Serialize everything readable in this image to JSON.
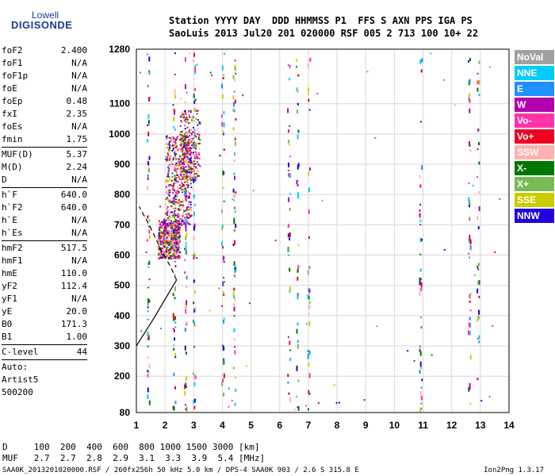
{
  "logo": {
    "line1": "Lowell",
    "line2": "DIGISONDE"
  },
  "header": {
    "line1": "Station YYYY DAY  DDD HHMMSS P1  FFS S AXN PPS IGA PS",
    "line2": "SaoLuis 2013 Jul20 201 020000 RSF 005 2 713 100 10+ 22"
  },
  "params_group1": [
    {
      "label": "foF2",
      "value": "2.400"
    },
    {
      "label": "foF1",
      "value": "N/A"
    },
    {
      "label": "foF1p",
      "value": "N/A"
    },
    {
      "label": "foE",
      "value": "N/A"
    },
    {
      "label": "foEp",
      "value": "0.48"
    },
    {
      "label": "fxI",
      "value": "2.35"
    },
    {
      "label": "foEs",
      "value": "N/A"
    },
    {
      "label": "fmin",
      "value": "1.75"
    }
  ],
  "params_group2": [
    {
      "label": "MUF(D)",
      "value": "5.37"
    },
    {
      "label": "M(D)",
      "value": "2.24"
    },
    {
      "label": "D",
      "value": "N/A"
    }
  ],
  "params_group3": [
    {
      "label": "h`F",
      "value": "640.0"
    },
    {
      "label": "h`F2",
      "value": "640.0"
    },
    {
      "label": "h`E",
      "value": "N/A"
    },
    {
      "label": "h`Es",
      "value": "N/A"
    }
  ],
  "params_group4": [
    {
      "label": "hmF2",
      "value": "517.5"
    },
    {
      "label": "hmF1",
      "value": "N/A"
    },
    {
      "label": "hmE",
      "value": "110.0"
    },
    {
      "label": "yF2",
      "value": "112.4"
    },
    {
      "label": "yF1",
      "value": "N/A"
    },
    {
      "label": "yE",
      "value": "20.0"
    },
    {
      "label": "B0",
      "value": "171.3"
    },
    {
      "label": "B1",
      "value": "1.00"
    }
  ],
  "params_group5": [
    {
      "label": "C-level",
      "value": "44"
    }
  ],
  "auto": {
    "line1": "Auto:",
    "line2": "Artist5",
    "line3": "500200"
  },
  "legend": [
    {
      "label": "NoVal",
      "color": "#a0a0a0"
    },
    {
      "label": "NNE",
      "color": "#00ccff"
    },
    {
      "label": "E",
      "color": "#1e90ff"
    },
    {
      "label": "W",
      "color": "#b000b0"
    },
    {
      "label": "Vo-",
      "color": "#ff33aa"
    },
    {
      "label": "Vo+",
      "color": "#ee0022"
    },
    {
      "label": "SSW",
      "color": "#ffb0b0"
    },
    {
      "label": "X-",
      "color": "#007700"
    },
    {
      "label": "X+",
      "color": "#77bb55"
    },
    {
      "label": "SSE",
      "color": "#cccc00"
    },
    {
      "label": "NNW",
      "color": "#2200dd"
    }
  ],
  "dmuf": {
    "line1": "D     100  200  400  600  800 1000 1500 3000 [km]",
    "line2": "MUF   2.7  2.7  2.8  2.9  3.1  3.3  3.9  5.4 [MHz]"
  },
  "footer": "SAA0K_2013201020000.RSF / 260fx256h 50 kHz 5.0 km / DPS-4 SAA0K 903 / 2.6 S 315.8 E",
  "version": "Ion2Png 1.3.17",
  "chart_data": {
    "type": "scatter",
    "xlabel": "",
    "ylabel": "",
    "xlim": [
      1,
      14
    ],
    "ylim": [
      80,
      1280
    ],
    "xticks": [
      1,
      2,
      3,
      4,
      5,
      6,
      7,
      8,
      9,
      10,
      11,
      12,
      13,
      14
    ],
    "yticks": [
      80,
      200,
      300,
      400,
      500,
      600,
      700,
      800,
      900,
      1000,
      1100,
      1280
    ],
    "grid": true,
    "trace_clusters": [
      {
        "freq_min": 1.75,
        "freq_max": 2.5,
        "height_min": 590,
        "height_max": 720,
        "density": "high"
      },
      {
        "freq_min": 2.0,
        "freq_max": 2.9,
        "height_min": 700,
        "height_max": 1000,
        "density": "high"
      },
      {
        "freq_min": 2.5,
        "freq_max": 3.2,
        "height_min": 850,
        "height_max": 1080,
        "density": "medium"
      }
    ],
    "interference_lines_mhz": [
      1.4,
      2.3,
      2.7,
      3.0,
      4.0,
      4.4,
      6.3,
      6.6,
      7.0,
      10.9,
      12.6,
      12.9
    ],
    "profile_curve": [
      [
        1.0,
        300
      ],
      [
        1.6,
        390
      ],
      [
        2.1,
        470
      ],
      [
        2.4,
        517.5
      ]
    ],
    "profile_extension_dashed": [
      [
        2.4,
        517.5
      ],
      [
        2.2,
        560
      ],
      [
        1.85,
        620
      ],
      [
        1.5,
        690
      ],
      [
        1.1,
        760
      ]
    ]
  }
}
